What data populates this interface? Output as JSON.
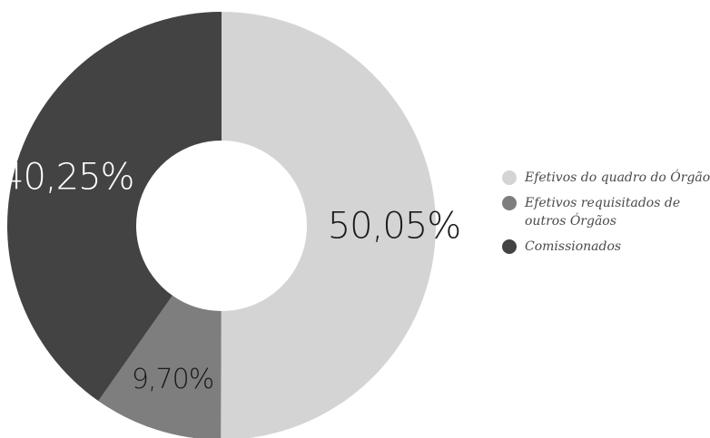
{
  "chart_data": {
    "type": "pie",
    "style": "donut",
    "categories": [
      "Efetivos do quadro do Órgão",
      "Efetivos requisitados de outros Órgãos",
      "Comissionados"
    ],
    "values": [
      50.05,
      9.7,
      40.25
    ],
    "data_labels": [
      "50,05%",
      "9,70%",
      "40,25%"
    ],
    "colors": [
      "#d4d4d4",
      "#7e7e7e",
      "#434343"
    ],
    "label_colors": [
      "#1a1a1a",
      "#1a1a1a",
      "#ffffff"
    ],
    "legend_position": "right",
    "start": "top",
    "direction": "clockwise"
  },
  "legend": {
    "items": [
      {
        "label": "Efetivos do quadro do Órgão",
        "color": "#d4d4d4"
      },
      {
        "label": "Efetivos requisitados de outros Órgãos",
        "color": "#7e7e7e"
      },
      {
        "label": "Comissionados",
        "color": "#434343"
      }
    ]
  }
}
